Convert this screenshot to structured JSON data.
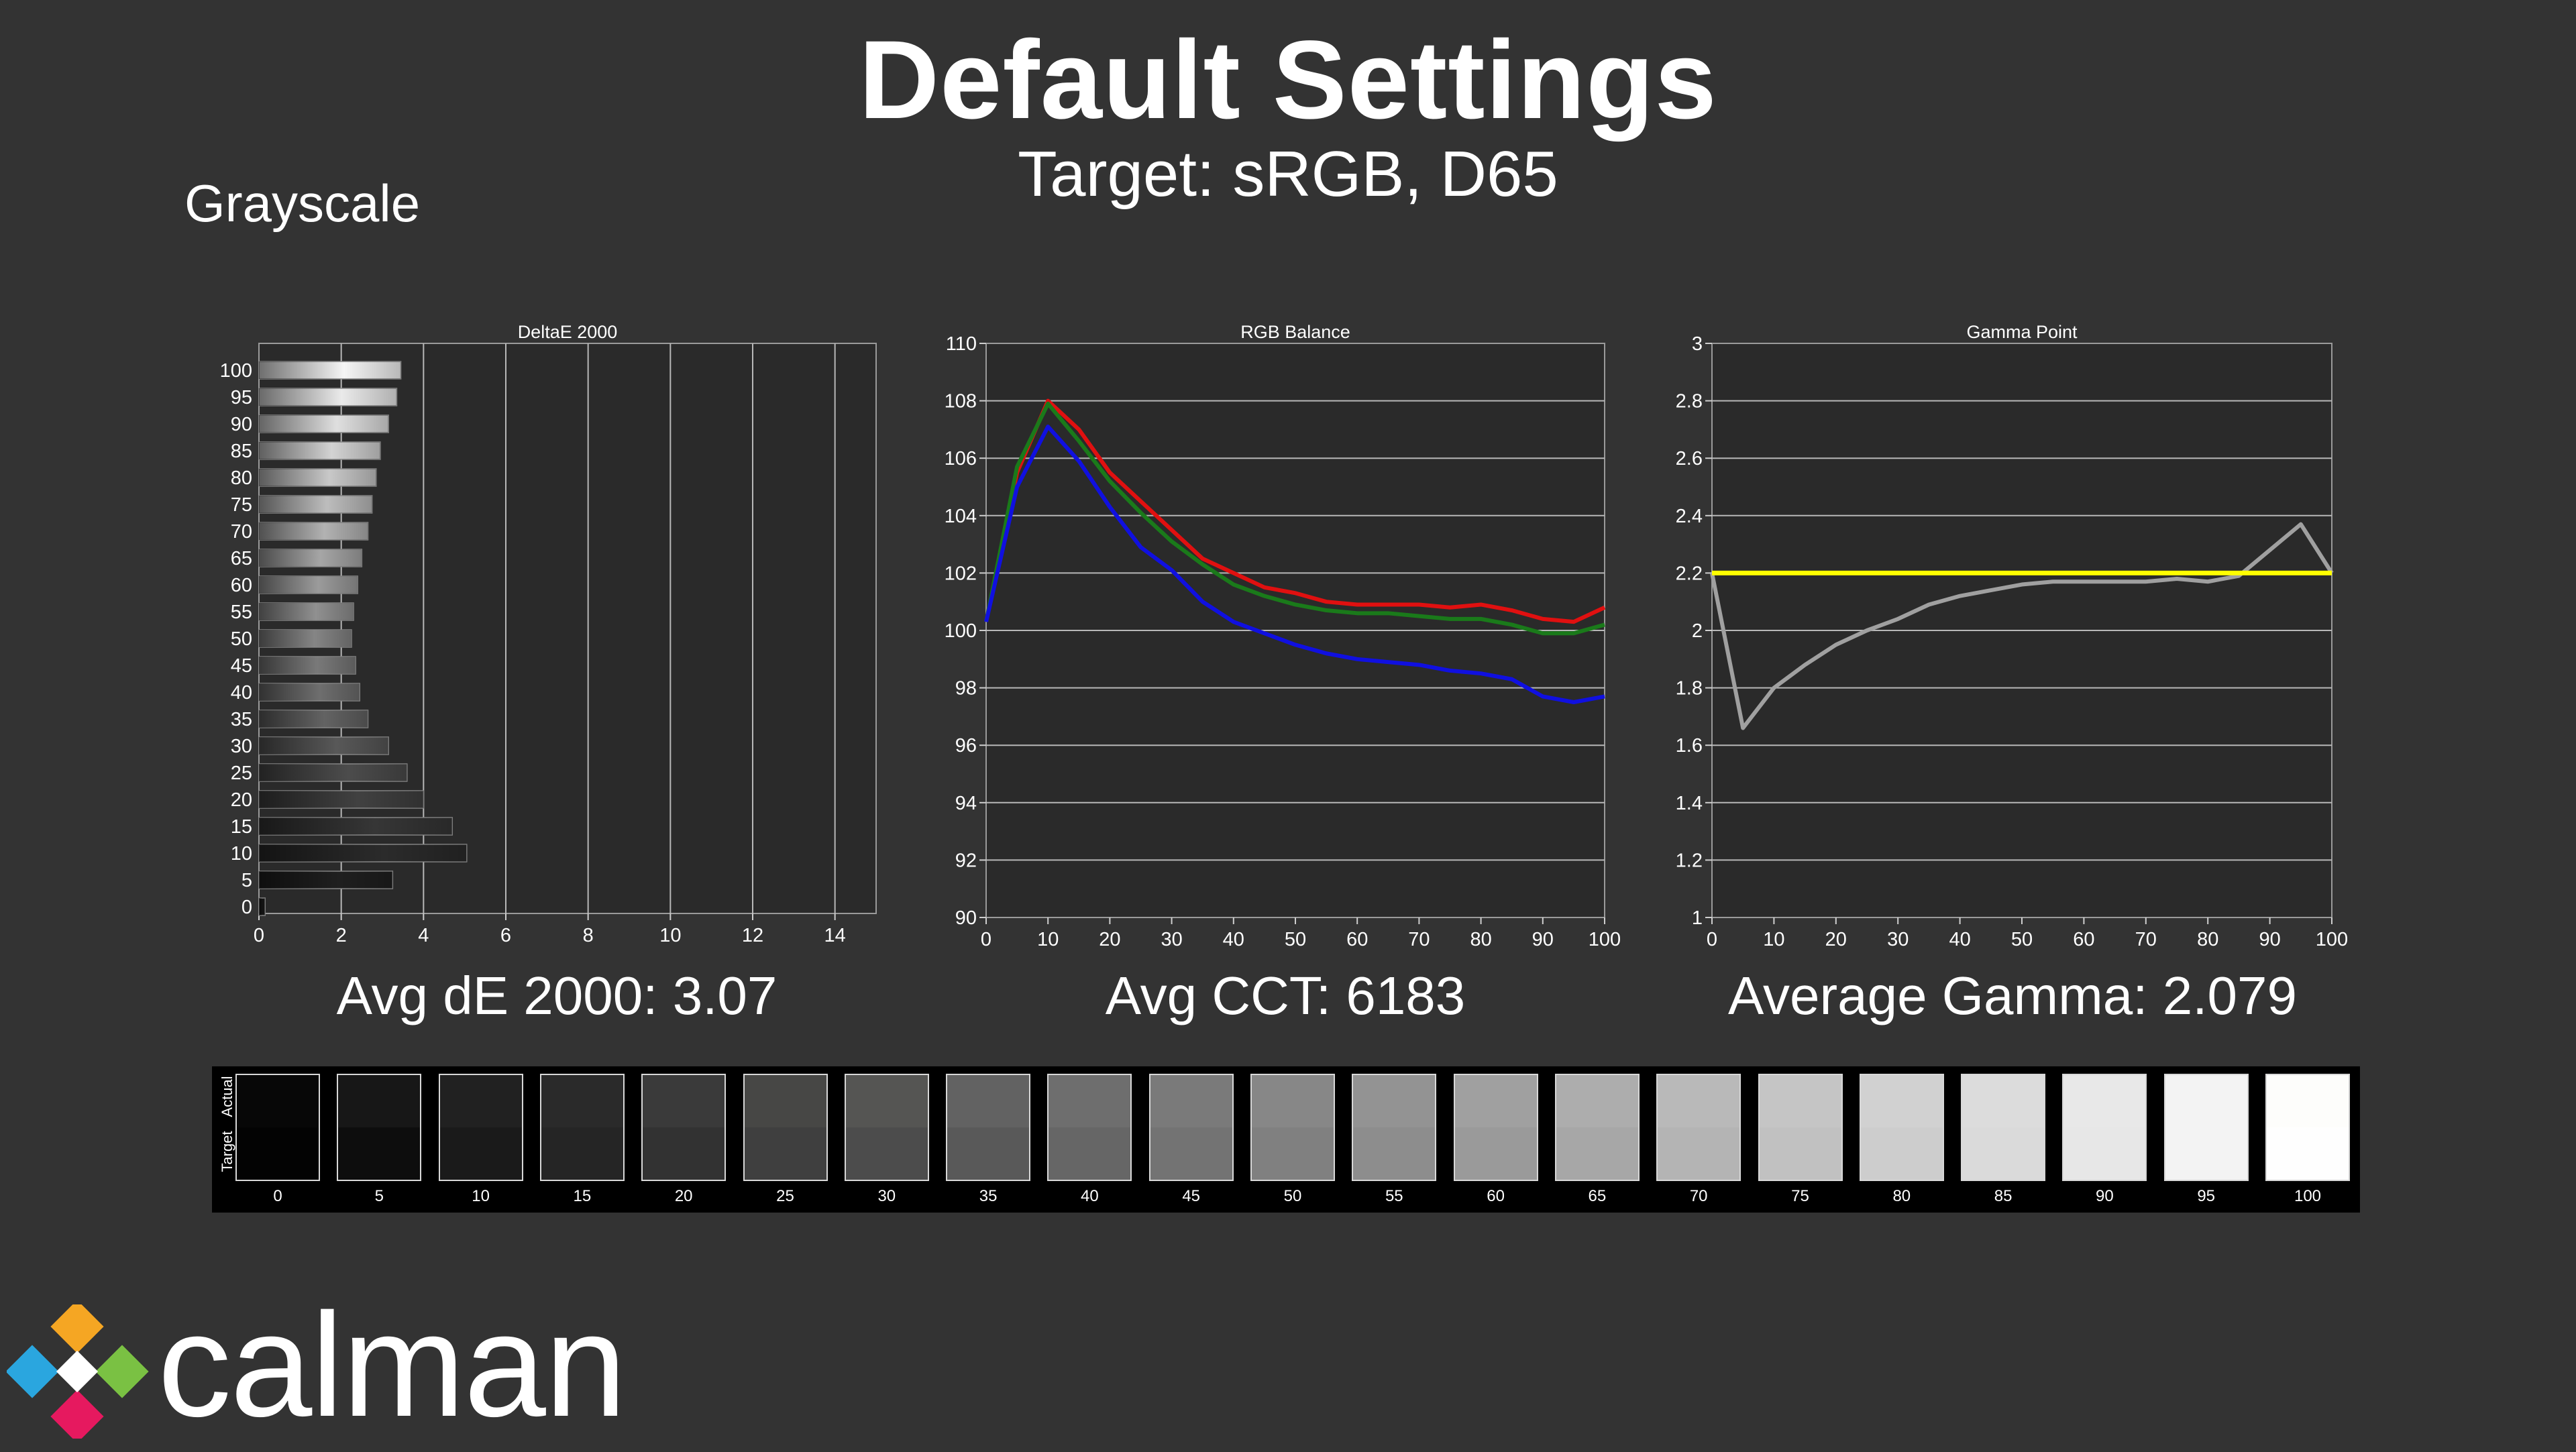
{
  "page": {
    "title": "Default Settings",
    "subtitle": "Target: sRGB, D65",
    "section": "Grayscale"
  },
  "stats": {
    "avg_de": "Avg dE 2000: 3.07",
    "avg_cct": "Avg CCT: 6183",
    "avg_gamma": "Average Gamma: 2.079"
  },
  "swatches": {
    "actual_label": "Actual",
    "target_label": "Target",
    "levels": [
      "0",
      "5",
      "10",
      "15",
      "20",
      "25",
      "30",
      "35",
      "40",
      "45",
      "50",
      "55",
      "60",
      "65",
      "70",
      "75",
      "80",
      "85",
      "90",
      "95",
      "100"
    ],
    "actual_colors": [
      "#070707",
      "#171717",
      "#212121",
      "#2a2a2a",
      "#3a3a3a",
      "#474745",
      "#555553",
      "#626262",
      "#6e6e6e",
      "#7a7a7a",
      "#878787",
      "#939393",
      "#a0a0a0",
      "#adadad",
      "#b9b9b9",
      "#c5c5c5",
      "#d1d1d1",
      "#dcdcdc",
      "#e8e8e8",
      "#f3f3f3",
      "#fdfdfb"
    ],
    "target_colors": [
      "#030303",
      "#0d0d0d",
      "#1a1a1a",
      "#252525",
      "#323232",
      "#3f3f3f",
      "#4c4c4c",
      "#595959",
      "#666666",
      "#737373",
      "#808080",
      "#8d8d8d",
      "#9a9a9a",
      "#a7a7a7",
      "#b4b4b4",
      "#c1c1c1",
      "#cdcdcd",
      "#dadada",
      "#e7e7e7",
      "#f3f3f3",
      "#fefefe"
    ]
  },
  "logo": {
    "text": "calman"
  },
  "chart_data": [
    {
      "type": "bar",
      "orientation": "horizontal",
      "title": "DeltaE 2000",
      "categories": [
        "0",
        "5",
        "10",
        "15",
        "20",
        "25",
        "30",
        "35",
        "40",
        "45",
        "50",
        "55",
        "60",
        "65",
        "70",
        "75",
        "80",
        "85",
        "90",
        "95",
        "100"
      ],
      "values": [
        0.15,
        3.25,
        5.05,
        4.7,
        4.0,
        3.6,
        3.15,
        2.65,
        2.45,
        2.35,
        2.25,
        2.3,
        2.4,
        2.5,
        2.65,
        2.75,
        2.85,
        2.95,
        3.15,
        3.35,
        3.45
      ],
      "xlim": [
        0,
        15
      ],
      "xticks": [
        0,
        2,
        4,
        6,
        8,
        10,
        12,
        14
      ],
      "grid": true
    },
    {
      "type": "line",
      "title": "RGB Balance",
      "x": [
        0,
        5,
        10,
        15,
        20,
        25,
        30,
        35,
        40,
        45,
        50,
        55,
        60,
        65,
        70,
        75,
        80,
        85,
        90,
        95,
        100
      ],
      "series": [
        {
          "color": "#e01010",
          "values": [
            100.3,
            105.5,
            108.0,
            107.0,
            105.5,
            104.5,
            103.5,
            102.5,
            102.0,
            101.5,
            101.3,
            101.0,
            100.9,
            100.9,
            100.9,
            100.8,
            100.9,
            100.7,
            100.4,
            100.3,
            100.8
          ]
        },
        {
          "color": "#1a7a1a",
          "values": [
            100.3,
            105.7,
            107.9,
            106.6,
            105.2,
            104.1,
            103.1,
            102.3,
            101.6,
            101.2,
            100.9,
            100.7,
            100.6,
            100.6,
            100.5,
            100.4,
            100.4,
            100.2,
            99.9,
            99.9,
            100.2
          ]
        },
        {
          "color": "#1010e0",
          "values": [
            100.3,
            105.0,
            107.1,
            105.9,
            104.3,
            102.9,
            102.1,
            101.0,
            100.3,
            99.9,
            99.5,
            99.2,
            99.0,
            98.9,
            98.8,
            98.6,
            98.5,
            98.3,
            97.7,
            97.5,
            97.7
          ]
        }
      ],
      "ylim": [
        90,
        110
      ],
      "yticks": [
        90,
        92,
        94,
        96,
        98,
        100,
        102,
        104,
        106,
        108,
        110
      ],
      "xticks": [
        0,
        10,
        20,
        30,
        40,
        50,
        60,
        70,
        80,
        90,
        100
      ],
      "grid": true
    },
    {
      "type": "line",
      "title": "Gamma Point",
      "x": [
        0,
        5,
        10,
        15,
        20,
        25,
        30,
        35,
        40,
        45,
        50,
        55,
        60,
        65,
        70,
        75,
        80,
        85,
        90,
        95,
        100
      ],
      "series": [
        {
          "color": "#a0a0a0",
          "values": [
            2.2,
            1.66,
            1.8,
            1.88,
            1.95,
            2.0,
            2.04,
            2.09,
            2.12,
            2.14,
            2.16,
            2.17,
            2.17,
            2.17,
            2.17,
            2.18,
            2.17,
            2.19,
            2.28,
            2.37,
            2.2
          ]
        },
        {
          "color": "#ffff00",
          "values": [
            2.2,
            2.2,
            2.2,
            2.2,
            2.2,
            2.2,
            2.2,
            2.2,
            2.2,
            2.2,
            2.2,
            2.2,
            2.2,
            2.2,
            2.2,
            2.2,
            2.2,
            2.2,
            2.2,
            2.2,
            2.2
          ]
        }
      ],
      "ylim": [
        1,
        3
      ],
      "yticks": [
        "1",
        "1.2",
        "1.4",
        "1.6",
        "1.8",
        "2",
        "2.2",
        "2.4",
        "2.6",
        "2.8",
        "3"
      ],
      "xticks": [
        0,
        10,
        20,
        30,
        40,
        50,
        60,
        70,
        80,
        90,
        100
      ],
      "grid": true
    }
  ]
}
